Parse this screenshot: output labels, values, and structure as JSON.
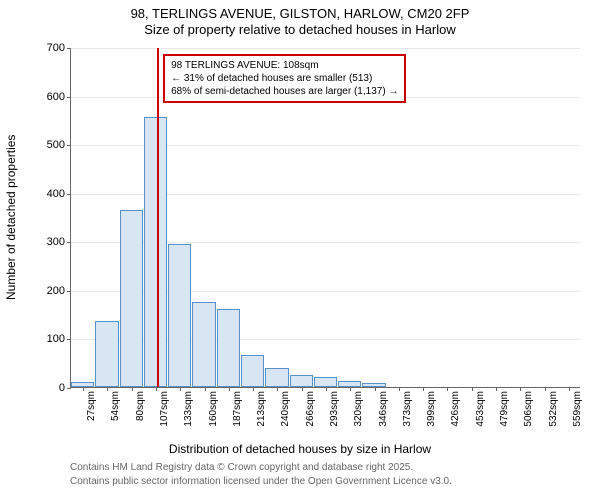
{
  "chart": {
    "type": "histogram",
    "title_main": "98, TERLINGS AVENUE, GILSTON, HARLOW, CM20 2FP",
    "title_sub": "Size of property relative to detached houses in Harlow",
    "y_axis_label": "Number of detached properties",
    "x_axis_label": "Distribution of detached houses by size in Harlow",
    "title_fontsize": 13,
    "axis_label_fontsize": 12,
    "tick_fontsize": 11,
    "ylim": [
      0,
      700
    ],
    "ytick_step": 100,
    "yticks": [
      0,
      100,
      200,
      300,
      400,
      500,
      600,
      700
    ],
    "xticks": [
      "27sqm",
      "54sqm",
      "80sqm",
      "107sqm",
      "133sqm",
      "160sqm",
      "187sqm",
      "213sqm",
      "240sqm",
      "266sqm",
      "293sqm",
      "320sqm",
      "346sqm",
      "373sqm",
      "399sqm",
      "426sqm",
      "453sqm",
      "479sqm",
      "506sqm",
      "532sqm",
      "559sqm"
    ],
    "values": [
      10,
      135,
      365,
      555,
      295,
      175,
      160,
      65,
      40,
      25,
      20,
      12,
      8,
      0,
      0,
      0,
      0,
      0,
      0,
      0,
      0
    ],
    "bar_fill": "#d8e5f3",
    "bar_stroke": "#5b8fc7",
    "background_color": "#ffffff",
    "grid_color": "#e8e8e8",
    "axis_color": "#666666",
    "marker": {
      "position_sqm": 108,
      "color": "#cc0000",
      "annotation_lines": [
        "98 TERLINGS AVENUE: 108sqm",
        "← 31% of detached houses are smaller (513)",
        "68% of semi-detached houses are larger (1,137) →"
      ]
    },
    "footer_line1": "Contains HM Land Registry data © Crown copyright and database right 2025.",
    "footer_line2": "Contains public sector information licensed under the Open Government Licence v3.0.",
    "footer_color": "#666666",
    "footer_fontsize": 10
  }
}
